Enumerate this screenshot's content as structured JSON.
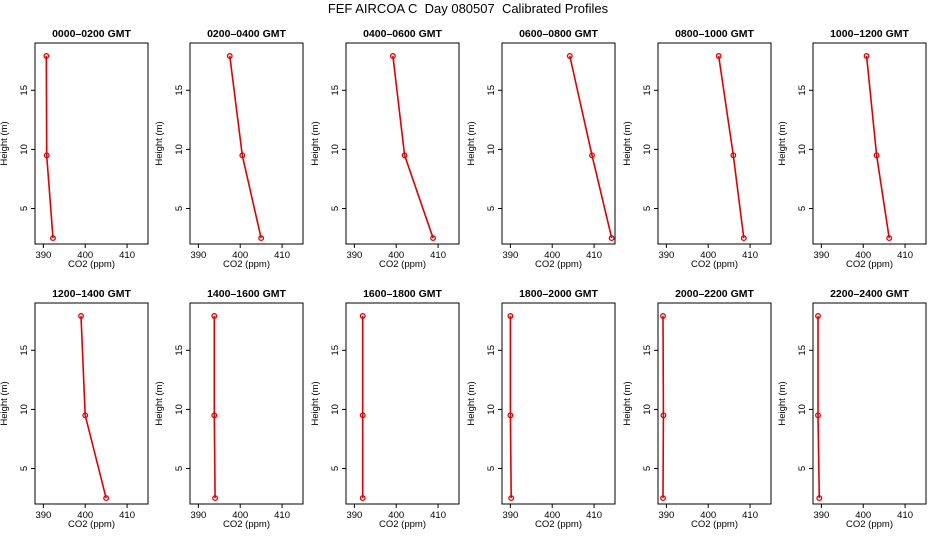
{
  "title": "FEF AIRCOA C  Day 080507  Calibrated Profiles",
  "colors": {
    "profile": "#e00000",
    "axis": "#000000",
    "background": "#ffffff"
  },
  "chart_data": [
    {
      "type": "line",
      "title": "0000–0200 GMT",
      "xlabel": "CO2 (ppm)",
      "ylabel": "Height (m)",
      "xlim": [
        388,
        415
      ],
      "ylim": [
        2,
        19
      ],
      "xticks": [
        390,
        400,
        410
      ],
      "yticks": [
        5,
        10,
        15
      ],
      "grid": false,
      "series": [
        {
          "x": [
            390.7,
            390.8,
            392.3
          ],
          "y": [
            17.9,
            9.5,
            2.5
          ]
        }
      ]
    },
    {
      "type": "line",
      "title": "0200–0400 GMT",
      "xlabel": "CO2 (ppm)",
      "ylabel": "Height (m)",
      "xlim": [
        388,
        415
      ],
      "ylim": [
        2,
        19
      ],
      "xticks": [
        390,
        400,
        410
      ],
      "yticks": [
        5,
        10,
        15
      ],
      "grid": false,
      "series": [
        {
          "x": [
            397.5,
            400.5,
            405.0
          ],
          "y": [
            17.9,
            9.5,
            2.5
          ]
        }
      ]
    },
    {
      "type": "line",
      "title": "0400–0600 GMT",
      "xlabel": "CO2 (ppm)",
      "ylabel": "Height (m)",
      "xlim": [
        388,
        415
      ],
      "ylim": [
        2,
        19
      ],
      "xticks": [
        390,
        400,
        410
      ],
      "yticks": [
        5,
        10,
        15
      ],
      "grid": false,
      "series": [
        {
          "x": [
            399.2,
            402.0,
            408.8
          ],
          "y": [
            17.9,
            9.5,
            2.5
          ]
        }
      ]
    },
    {
      "type": "line",
      "title": "0600–0800 GMT",
      "xlabel": "CO2 (ppm)",
      "ylabel": "Height (m)",
      "xlim": [
        388,
        415
      ],
      "ylim": [
        2,
        19
      ],
      "xticks": [
        390,
        400,
        410
      ],
      "yticks": [
        5,
        10,
        15
      ],
      "grid": false,
      "series": [
        {
          "x": [
            404.2,
            409.5,
            414.2
          ],
          "y": [
            17.9,
            9.5,
            2.5
          ]
        }
      ]
    },
    {
      "type": "line",
      "title": "0800–1000 GMT",
      "xlabel": "CO2 (ppm)",
      "ylabel": "Height (m)",
      "xlim": [
        388,
        415
      ],
      "ylim": [
        2,
        19
      ],
      "xticks": [
        390,
        400,
        410
      ],
      "yticks": [
        5,
        10,
        15
      ],
      "grid": false,
      "series": [
        {
          "x": [
            402.5,
            406.0,
            408.5
          ],
          "y": [
            17.9,
            9.5,
            2.5
          ]
        }
      ]
    },
    {
      "type": "line",
      "title": "1000–1200 GMT",
      "xlabel": "CO2 (ppm)",
      "ylabel": "Height (m)",
      "xlim": [
        388,
        415
      ],
      "ylim": [
        2,
        19
      ],
      "xticks": [
        390,
        400,
        410
      ],
      "yticks": [
        5,
        10,
        15
      ],
      "grid": false,
      "series": [
        {
          "x": [
            400.8,
            403.2,
            406.2
          ],
          "y": [
            17.9,
            9.5,
            2.5
          ]
        }
      ]
    },
    {
      "type": "line",
      "title": "1200–1400 GMT",
      "xlabel": "CO2 (ppm)",
      "ylabel": "Height (m)",
      "xlim": [
        388,
        415
      ],
      "ylim": [
        2,
        19
      ],
      "xticks": [
        390,
        400,
        410
      ],
      "yticks": [
        5,
        10,
        15
      ],
      "grid": false,
      "series": [
        {
          "x": [
            399.0,
            400.0,
            405.0
          ],
          "y": [
            17.9,
            9.5,
            2.5
          ]
        }
      ]
    },
    {
      "type": "line",
      "title": "1400–1600 GMT",
      "xlabel": "CO2 (ppm)",
      "ylabel": "Height (m)",
      "xlim": [
        388,
        415
      ],
      "ylim": [
        2,
        19
      ],
      "xticks": [
        390,
        400,
        410
      ],
      "yticks": [
        5,
        10,
        15
      ],
      "grid": false,
      "series": [
        {
          "x": [
            393.8,
            393.8,
            394.0
          ],
          "y": [
            17.9,
            9.5,
            2.5
          ]
        }
      ]
    },
    {
      "type": "line",
      "title": "1600–1800 GMT",
      "xlabel": "CO2 (ppm)",
      "ylabel": "Height (m)",
      "xlim": [
        388,
        415
      ],
      "ylim": [
        2,
        19
      ],
      "xticks": [
        390,
        400,
        410
      ],
      "yticks": [
        5,
        10,
        15
      ],
      "grid": false,
      "series": [
        {
          "x": [
            392.0,
            392.0,
            392.0
          ],
          "y": [
            17.9,
            9.5,
            2.5
          ]
        }
      ]
    },
    {
      "type": "line",
      "title": "1800–2000 GMT",
      "xlabel": "CO2 (ppm)",
      "ylabel": "Height (m)",
      "xlim": [
        388,
        415
      ],
      "ylim": [
        2,
        19
      ],
      "xticks": [
        390,
        400,
        410
      ],
      "yticks": [
        5,
        10,
        15
      ],
      "grid": false,
      "series": [
        {
          "x": [
            390.0,
            390.0,
            390.2
          ],
          "y": [
            17.9,
            9.5,
            2.5
          ]
        }
      ]
    },
    {
      "type": "line",
      "title": "2000–2200 GMT",
      "xlabel": "CO2 (ppm)",
      "ylabel": "Height (m)",
      "xlim": [
        388,
        415
      ],
      "ylim": [
        2,
        19
      ],
      "xticks": [
        390,
        400,
        410
      ],
      "yticks": [
        5,
        10,
        15
      ],
      "grid": false,
      "series": [
        {
          "x": [
            389.2,
            389.3,
            389.2
          ],
          "y": [
            17.9,
            9.5,
            2.5
          ]
        }
      ]
    },
    {
      "type": "line",
      "title": "2200–2400 GMT",
      "xlabel": "CO2 (ppm)",
      "ylabel": "Height (m)",
      "xlim": [
        388,
        415
      ],
      "ylim": [
        2,
        19
      ],
      "xticks": [
        390,
        400,
        410
      ],
      "yticks": [
        5,
        10,
        15
      ],
      "grid": false,
      "series": [
        {
          "x": [
            389.2,
            389.2,
            389.5
          ],
          "y": [
            17.9,
            9.5,
            2.5
          ]
        }
      ]
    }
  ]
}
